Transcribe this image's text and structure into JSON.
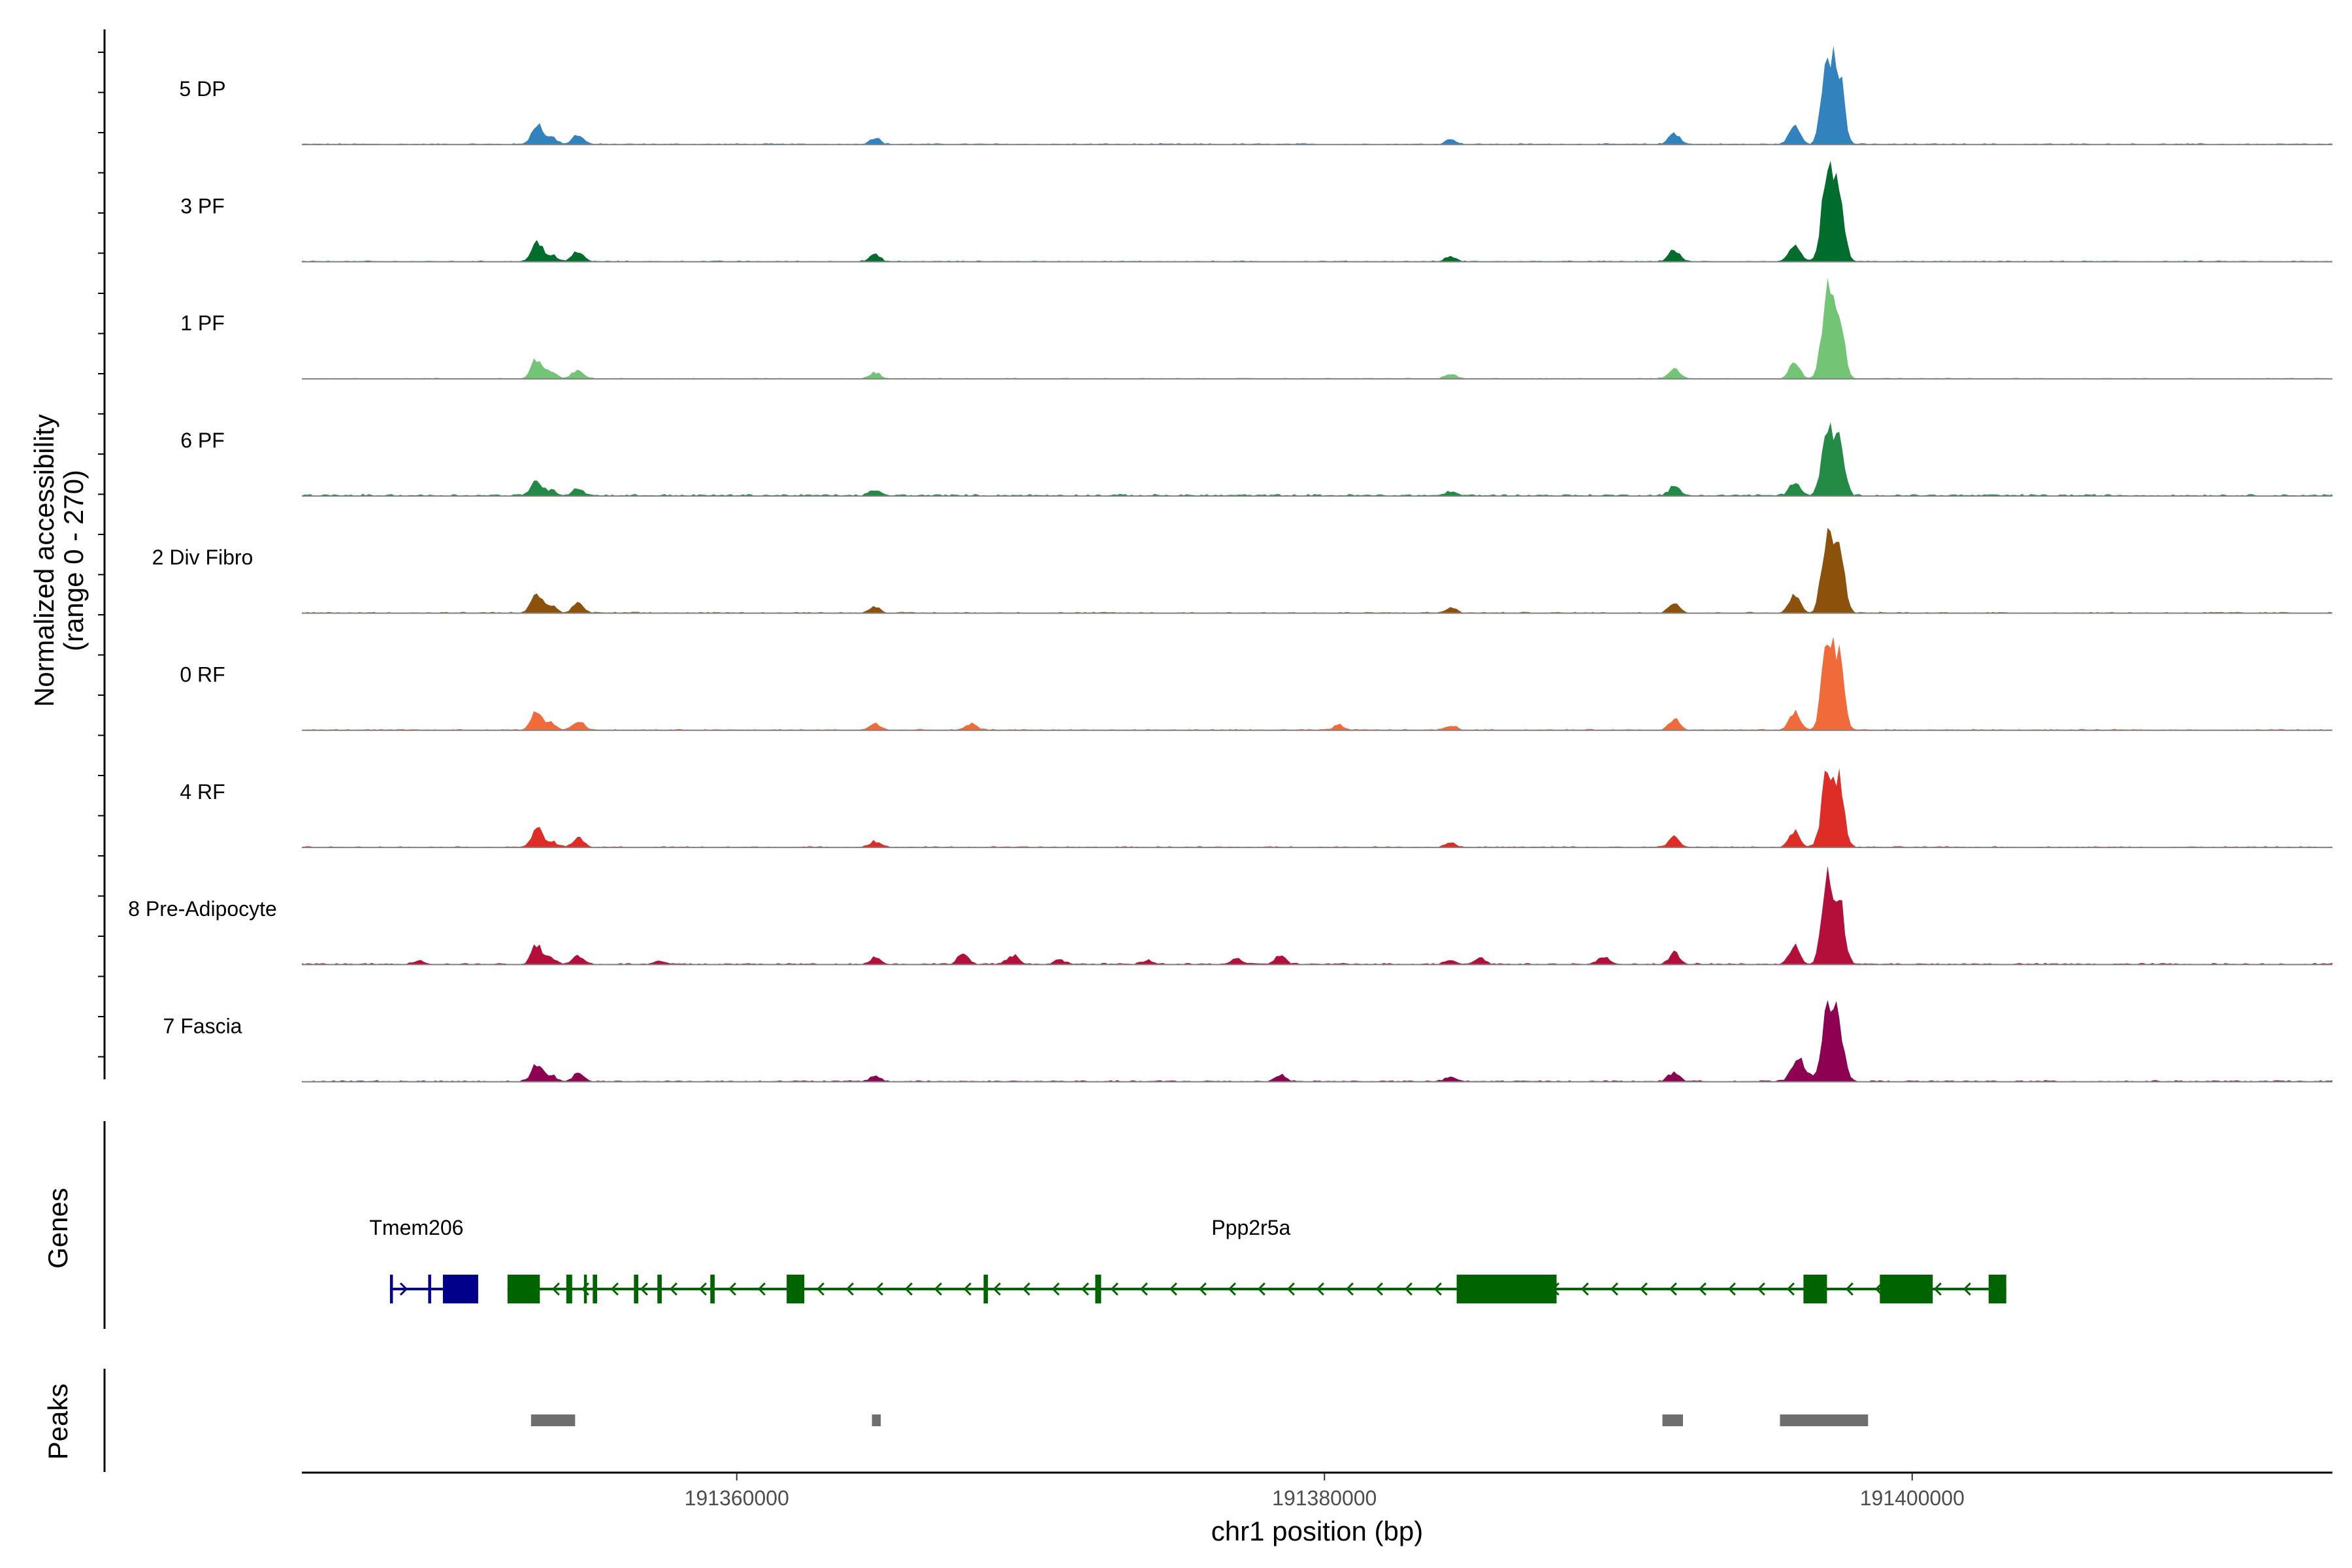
{
  "chart_data": {
    "type": "area",
    "ylabel_line1": "Normalized accessibility",
    "ylabel_line2": "(range 0 - 270)",
    "ylim": [
      0,
      270
    ],
    "xlabel": "chr1 position (bp)",
    "xlim": [
      191345200,
      191414300
    ],
    "x_ticks": [
      191360000,
      191380000,
      191400000
    ],
    "x_tick_labels": [
      "191360000",
      "191380000",
      "191400000"
    ],
    "tracks": [
      {
        "name": "5 DP",
        "color": "#3182bd",
        "scale": 0.93,
        "noise": 0.015,
        "extra": []
      },
      {
        "name": "3 PF",
        "color": "#006d2c",
        "scale": 0.93,
        "noise": 0.012,
        "extra": []
      },
      {
        "name": "1 PF",
        "color": "#74c476",
        "scale": 0.88,
        "noise": 0.012,
        "extra": []
      },
      {
        "name": "6 PF",
        "color": "#238b45",
        "scale": 0.68,
        "noise": 0.03,
        "extra": []
      },
      {
        "name": "2 Div Fibro",
        "color": "#8c510a",
        "scale": 0.89,
        "noise": 0.015,
        "extra": []
      },
      {
        "name": "0 RF",
        "color": "#f16a3a",
        "scale": 0.89,
        "noise": 0.015,
        "extra": [
          [
            191368000,
            0.08
          ],
          [
            191380500,
            0.06
          ]
        ]
      },
      {
        "name": "4 RF",
        "color": "#de2d26",
        "scale": 0.84,
        "noise": 0.015,
        "extra": []
      },
      {
        "name": "8 Pre-Adipocyte",
        "color": "#b30f3a",
        "scale": 0.85,
        "noise": 0.02,
        "extra": [
          [
            191349200,
            0.05
          ],
          [
            191367700,
            0.14
          ],
          [
            191369400,
            0.12
          ],
          [
            191378500,
            0.12
          ],
          [
            191385300,
            0.09
          ],
          [
            191389500,
            0.09
          ],
          [
            191357400,
            0.04
          ],
          [
            191371000,
            0.06
          ],
          [
            191374000,
            0.05
          ],
          [
            191377000,
            0.07
          ]
        ]
      },
      {
        "name": "7 Fascia",
        "color": "#8e0152",
        "scale": 0.76,
        "noise": 0.02,
        "extra": [
          [
            191378500,
            0.1
          ],
          [
            191396300,
            0.2
          ]
        ]
      }
    ],
    "common_peaks": [
      [
        191353200,
        0.25
      ],
      [
        191353700,
        0.08
      ],
      [
        191354600,
        0.12
      ],
      [
        191364700,
        0.08
      ],
      [
        191384300,
        0.06
      ],
      [
        191391900,
        0.14
      ],
      [
        191396000,
        0.22
      ],
      [
        191397100,
        1.0
      ],
      [
        191397500,
        0.85
      ]
    ],
    "genes_label": "Genes",
    "genes": [
      {
        "name": "Tmem206",
        "color": "#00008b",
        "start": 191348200,
        "end": 191350000,
        "strand": "+",
        "exons": [
          [
            191348200,
            191348300
          ],
          [
            191349500,
            191349600
          ],
          [
            191350000,
            191351200
          ]
        ]
      },
      {
        "name": "Ppp2r5a",
        "color": "#006400",
        "start": 191352200,
        "end": 191403200,
        "strand": "-",
        "exons": [
          [
            191352200,
            191353300
          ],
          [
            191354200,
            191354400
          ],
          [
            191354800,
            191354900
          ],
          [
            191355100,
            191355250
          ],
          [
            191356500,
            191356650
          ],
          [
            191357300,
            191357450
          ],
          [
            191359100,
            191359250
          ],
          [
            191361700,
            191362300
          ],
          [
            191368400,
            191368550
          ],
          [
            191372200,
            191372400
          ],
          [
            191384500,
            191387900
          ],
          [
            191396300,
            191397100
          ],
          [
            191398900,
            191400700
          ],
          [
            191402600,
            191403200
          ]
        ]
      }
    ],
    "peaks_label": "Peaks",
    "peaks": [
      [
        191353000,
        191354500
      ],
      [
        191364600,
        191364900
      ],
      [
        191391500,
        191392200
      ],
      [
        191395500,
        191398500
      ]
    ]
  }
}
